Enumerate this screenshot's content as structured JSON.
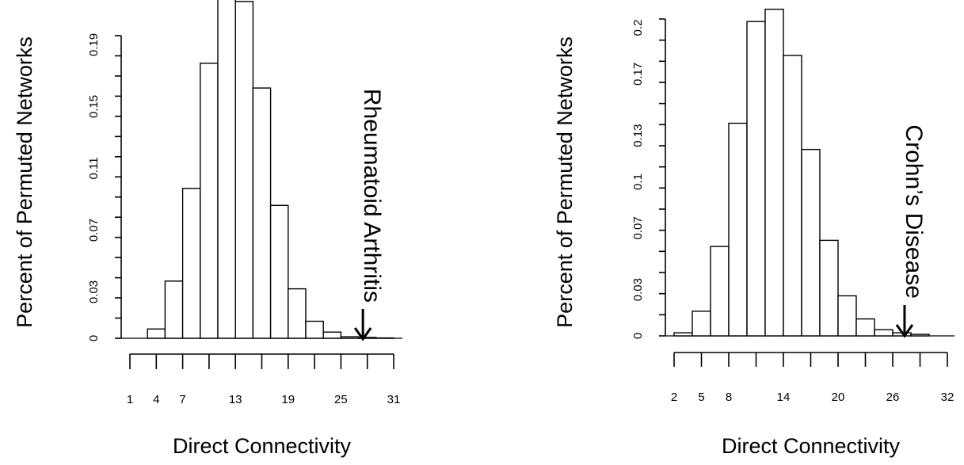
{
  "chart_data": [
    {
      "type": "bar",
      "xlabel": "Direct Connectivity",
      "ylabel": "Percent of Permuted Networks",
      "x_ticks": [
        "1",
        "4",
        "7",
        "13",
        "19",
        "25",
        "31"
      ],
      "y_ticks": [
        "0",
        "0.03",
        "0.07",
        "0.11",
        "0.15",
        "0.19"
      ],
      "bin_edges": [
        1,
        3,
        5,
        7,
        9,
        11,
        13,
        15,
        17,
        19,
        21,
        23,
        25,
        27,
        29,
        31
      ],
      "values": [
        0.0,
        0.006,
        0.037,
        0.097,
        0.178,
        0.231,
        0.218,
        0.162,
        0.086,
        0.032,
        0.011,
        0.004,
        0.001,
        0.0005,
        0.0002
      ],
      "ylim": [
        0,
        0.2
      ],
      "annotation": {
        "text": "Rheumatoid Arthritis",
        "x": 27.5
      }
    },
    {
      "type": "bar",
      "xlabel": "Direct Connectivity",
      "ylabel": "Percent of Permuted Networks",
      "x_ticks": [
        "2",
        "5",
        "8",
        "14",
        "20",
        "26",
        "32"
      ],
      "y_ticks": [
        "0",
        "0.03",
        "0.07",
        "0.1",
        "0.13",
        "0.17",
        "0.2"
      ],
      "bin_edges": [
        2,
        4,
        6,
        8,
        10,
        12,
        14,
        16,
        18,
        20,
        22,
        24,
        26,
        28,
        30
      ],
      "values": [
        0.002,
        0.016,
        0.058,
        0.138,
        0.204,
        0.212,
        0.182,
        0.121,
        0.062,
        0.026,
        0.011,
        0.004,
        0.002,
        0.001
      ],
      "ylim": [
        0,
        0.2
      ],
      "annotation": {
        "text": "Crohn’s Disease",
        "x": 27.3
      }
    }
  ]
}
